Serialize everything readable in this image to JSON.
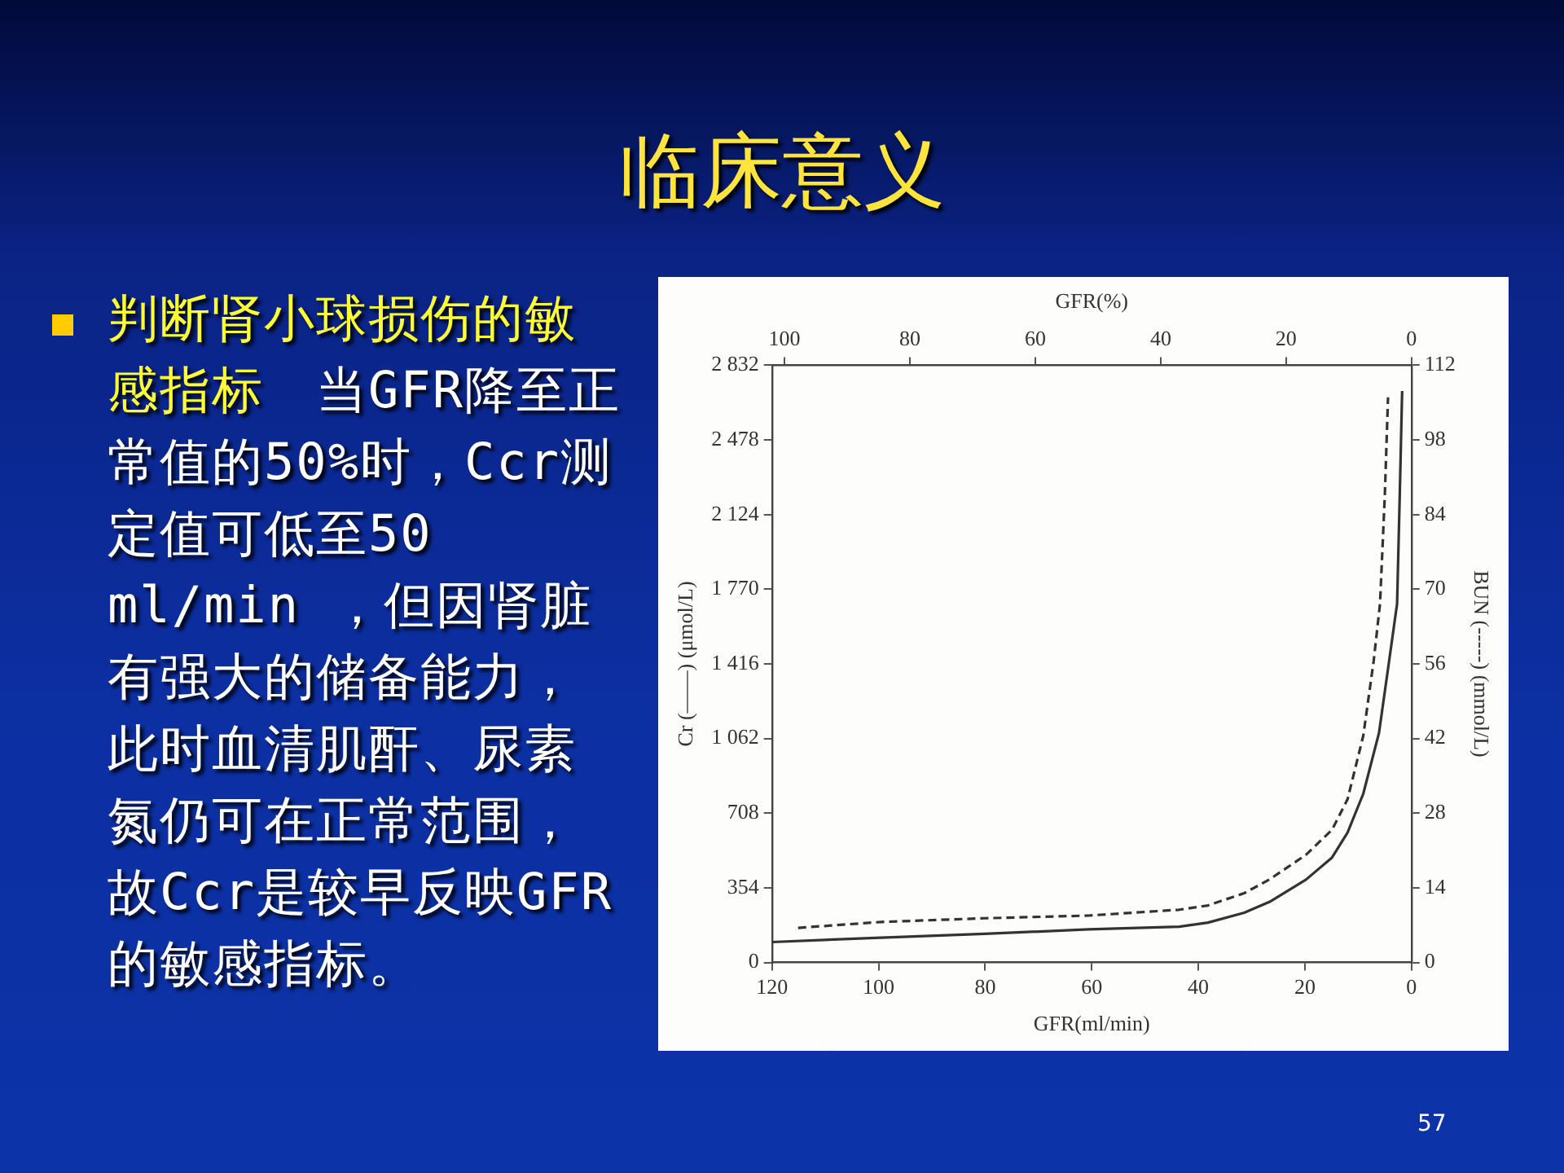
{
  "chart_data": {
    "type": "line",
    "title": "临床意义",
    "annotations": [
      "判断肾小球损伤的敏感指标",
      "当GFR降至正常值的50%时，Ccr测定值可低至50 ml/min ，但因肾脏有强大的储备能力，此时血清肌酐、尿素氮仍可在正常范围，故Ccr是较早反映GFR的敏感指标。",
      "57"
    ],
    "xlabel": "GFR(ml/min)",
    "x2label": "GFR(%)",
    "ylabel": "Cr (——) (μmol/L)",
    "y2label": "BUN (-----) (mmol/L)",
    "xlim": [
      120,
      0
    ],
    "xticks": [
      120,
      100,
      80,
      60,
      40,
      20,
      0
    ],
    "x2lim": [
      102,
      0
    ],
    "x2ticks": [
      100,
      80,
      60,
      40,
      20,
      0
    ],
    "ylim": [
      0,
      2832
    ],
    "yticks": [
      0,
      354,
      708,
      {
        "value": 1062,
        "label": "1 062"
      },
      {
        "value": 1416,
        "label": "1 416"
      },
      {
        "value": 1770,
        "label": "1 770"
      },
      {
        "value": 2124,
        "label": "2 124"
      },
      {
        "value": 2478,
        "label": "2 478"
      },
      {
        "value": 2832,
        "label": "2 832"
      }
    ],
    "y2lim": [
      0,
      112
    ],
    "y2ticks": [
      0,
      14,
      28,
      42,
      56,
      70,
      84,
      98,
      112
    ],
    "grid": false,
    "legend": false,
    "series": [
      {
        "type": "line",
        "color": "#333333",
        "line_style": "solid",
        "axis": "y",
        "x": [
          120,
          99.6,
          80.1,
          60.6,
          43.6,
          38.2,
          31.4,
          26.6,
          19.8,
          14.9,
          12,
          9.05,
          6.1,
          4.2,
          2.7,
          2.2,
          1.75
        ],
        "values": [
          97,
          118,
          136,
          157,
          170,
          189,
          236,
          288,
          393,
          498,
          616,
          800,
          1088,
          1429,
          1701,
          2218,
          2710
        ]
      },
      {
        "type": "line",
        "color": "#333333",
        "line_style": "dashed",
        "axis": "y2",
        "x": [
          115.1,
          99.6,
          80.1,
          60.6,
          43.6,
          38.2,
          31.4,
          26.6,
          19.8,
          14.9,
          12,
          9.05,
          7.1,
          5.9,
          5,
          4.4
        ],
        "values": [
          6.5,
          7.6,
          8.3,
          8.8,
          9.9,
          10.7,
          13,
          15.6,
          20.2,
          24.9,
          30.6,
          42.5,
          56.5,
          67.3,
          87.7,
          106
        ]
      }
    ]
  }
}
